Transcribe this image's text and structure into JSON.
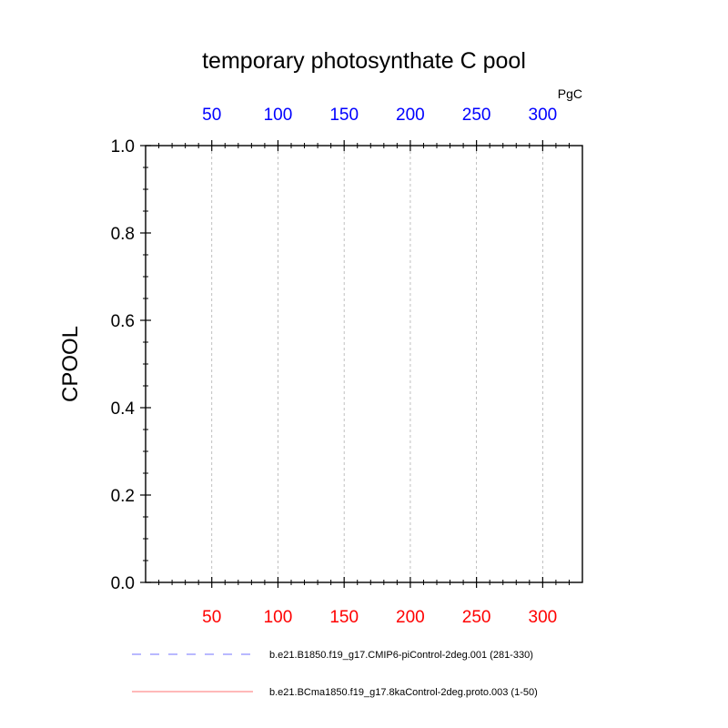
{
  "chart_data": {
    "type": "line",
    "title": "temporary photosynthate C pool",
    "ylabel": "CPOOL",
    "xlabel": "",
    "top_axis_units": "PgC",
    "xlim": [
      0,
      330
    ],
    "ylim": [
      0,
      1
    ],
    "x_ticks": [
      50,
      100,
      150,
      200,
      250,
      300
    ],
    "x_minor_step": 10,
    "y_ticks": [
      0,
      0.2,
      0.4,
      0.6,
      0.8,
      1.0
    ],
    "y_tick_labels": [
      "0.0",
      "0.2",
      "0.4",
      "0.6",
      "0.8",
      "1.0"
    ],
    "y_minor_step": 0.05,
    "grid_x": true,
    "grid_y": false,
    "legend_position": "bottom",
    "series": [
      {
        "name": "b.e21.B1850.f19_g17.CMIP6-piControl-2deg.001 (281-330)",
        "color": "#0000ff",
        "style": "dashed",
        "axis": "top",
        "x": [],
        "y": []
      },
      {
        "name": "b.e21.BCma1850.f19_g17.8kaControl-2deg.proto.003 (1-50)",
        "color": "#ff0000",
        "style": "solid",
        "axis": "bottom",
        "x": [
          1,
          50
        ],
        "y": [
          0,
          0
        ]
      }
    ],
    "colors": {
      "top_axis_labels": "#0000ff",
      "bottom_axis_labels": "#ff0000",
      "frame": "#000000",
      "grid": "#b0b0b0"
    }
  }
}
